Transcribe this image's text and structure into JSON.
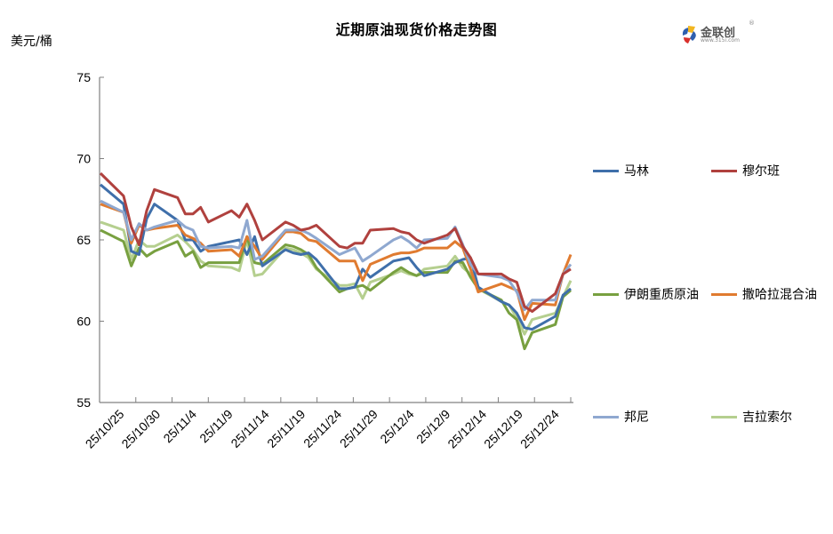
{
  "header": {
    "title": "近期原油现货价格走势图",
    "unit_label": "美元/桶",
    "logo_text": "金联创",
    "logo_sub": "www.315i.com"
  },
  "chart_data": {
    "type": "line",
    "title": "近期原油现货价格走势图",
    "xlabel": "",
    "ylabel": "美元/桶",
    "ylim": [
      55,
      75
    ],
    "yticks": [
      55,
      60,
      65,
      70,
      75
    ],
    "grid": false,
    "legend_position": "right",
    "xtick_labels": [
      "25/10/25",
      "25/10/30",
      "25/11/4",
      "25/11/9",
      "25/11/14",
      "25/11/19",
      "25/11/24",
      "25/11/29",
      "25/12/4",
      "25/12/9",
      "25/12/14",
      "25/12/19",
      "25/12/24"
    ],
    "x": [
      "25/10/24",
      "25/10/27",
      "25/10/28",
      "25/10/29",
      "25/10/30",
      "25/10/31",
      "25/11/3",
      "25/11/4",
      "25/11/5",
      "25/11/6",
      "25/11/7",
      "25/11/10",
      "25/11/11",
      "25/11/12",
      "25/11/13",
      "25/11/14",
      "25/11/17",
      "25/11/18",
      "25/11/19",
      "25/11/20",
      "25/11/21",
      "25/11/24",
      "25/11/25",
      "25/11/26",
      "25/11/27",
      "25/11/28",
      "25/12/1",
      "25/12/2",
      "25/12/3",
      "25/12/4",
      "25/12/5",
      "25/12/8",
      "25/12/9",
      "25/12/10",
      "25/12/11",
      "25/12/12",
      "25/12/15",
      "25/12/16",
      "25/12/17",
      "25/12/18",
      "25/12/19",
      "25/12/22",
      "25/12/23",
      "25/12/24"
    ],
    "series": [
      {
        "name": "马林",
        "color": "#3F6FAA",
        "values": [
          68.4,
          67.2,
          64.3,
          64.1,
          66.3,
          67.2,
          66.2,
          65.0,
          65.0,
          64.3,
          64.6,
          64.9,
          65.0,
          64.1,
          65.2,
          63.4,
          64.4,
          64.2,
          64.1,
          64.2,
          63.8,
          62.0,
          62.0,
          62.1,
          63.2,
          62.7,
          63.7,
          63.8,
          63.9,
          63.3,
          62.8,
          63.2,
          63.6,
          63.8,
          63.9,
          62.1,
          61.2,
          61.0,
          60.5,
          59.6,
          59.5,
          60.3,
          61.6,
          62.0
        ]
      },
      {
        "name": "穆尔班",
        "color": "#B0413E",
        "values": [
          69.1,
          67.7,
          65.8,
          64.7,
          66.8,
          68.1,
          67.6,
          66.6,
          66.6,
          67.0,
          66.1,
          66.8,
          66.4,
          67.2,
          66.2,
          65.0,
          66.1,
          65.9,
          65.6,
          65.7,
          65.9,
          64.6,
          64.5,
          64.8,
          64.8,
          65.6,
          65.7,
          65.5,
          65.4,
          65.0,
          64.8,
          65.3,
          65.7,
          64.6,
          63.9,
          62.9,
          62.9,
          62.6,
          62.4,
          60.9,
          60.6,
          61.7,
          62.9,
          63.2
        ]
      },
      {
        "name": "伊朗重质原油",
        "color": "#78A040",
        "values": [
          65.6,
          64.9,
          63.4,
          64.5,
          64.0,
          64.3,
          64.9,
          64.0,
          64.3,
          63.3,
          63.6,
          63.6,
          63.6,
          65.2,
          63.6,
          63.5,
          64.7,
          64.6,
          64.4,
          64.1,
          63.3,
          61.8,
          62.0,
          62.1,
          62.2,
          61.9,
          63.0,
          63.3,
          63.0,
          62.8,
          63.0,
          63.0,
          63.7,
          63.6,
          62.7,
          62.0,
          61.3,
          60.5,
          60.1,
          58.3,
          59.3,
          59.8,
          61.5,
          61.9
        ]
      },
      {
        "name": "撒哈拉混合油",
        "color": "#E07B30",
        "values": [
          67.2,
          66.7,
          64.8,
          65.9,
          65.6,
          65.7,
          65.9,
          65.3,
          65.1,
          64.8,
          64.3,
          64.4,
          64.0,
          65.2,
          64.6,
          63.8,
          65.5,
          65.5,
          65.4,
          65.0,
          64.9,
          63.7,
          63.7,
          63.7,
          62.5,
          63.5,
          64.1,
          64.2,
          64.2,
          64.3,
          64.5,
          64.5,
          64.9,
          64.5,
          63.2,
          61.8,
          62.3,
          62.1,
          61.9,
          60.1,
          61.1,
          61.0,
          62.9,
          64.1
        ]
      },
      {
        "name": "邦尼",
        "color": "#8FA8D0",
        "values": [
          67.4,
          66.7,
          65.0,
          66.0,
          65.6,
          65.8,
          66.2,
          65.8,
          65.6,
          64.6,
          64.5,
          64.6,
          64.5,
          66.2,
          63.8,
          64.0,
          65.6,
          65.6,
          65.6,
          65.4,
          65.1,
          64.1,
          64.3,
          64.5,
          63.7,
          64.0,
          65.0,
          65.2,
          64.9,
          64.5,
          65.0,
          65.1,
          65.8,
          64.7,
          63.5,
          62.9,
          62.7,
          62.5,
          61.8,
          60.7,
          61.3,
          61.3,
          62.9,
          63.5
        ]
      },
      {
        "name": "吉拉索尔",
        "color": "#B5CF8F",
        "values": [
          66.1,
          65.6,
          63.8,
          65.0,
          64.6,
          64.6,
          65.3,
          64.9,
          64.4,
          63.7,
          63.4,
          63.3,
          63.1,
          65.0,
          62.8,
          62.9,
          64.5,
          64.4,
          64.2,
          63.9,
          63.2,
          62.2,
          62.2,
          62.3,
          61.4,
          62.4,
          62.9,
          63.1,
          62.9,
          62.8,
          63.2,
          63.4,
          64.0,
          63.3,
          62.9,
          62.0,
          61.2,
          61.0,
          60.2,
          59.2,
          60.1,
          60.5,
          61.5,
          62.5
        ]
      }
    ]
  },
  "legend": {
    "items": [
      {
        "label": "马林",
        "color": "#3F6FAA"
      },
      {
        "label": "穆尔班",
        "color": "#B0413E"
      },
      {
        "label": "伊朗重质原油",
        "color": "#78A040"
      },
      {
        "label": "撒哈拉混合油",
        "color": "#E07B30"
      },
      {
        "label": "邦尼",
        "color": "#8FA8D0"
      },
      {
        "label": "吉拉索尔",
        "color": "#B5CF8F"
      }
    ]
  },
  "colors": {
    "axis": "#808080",
    "text": "#000000"
  }
}
